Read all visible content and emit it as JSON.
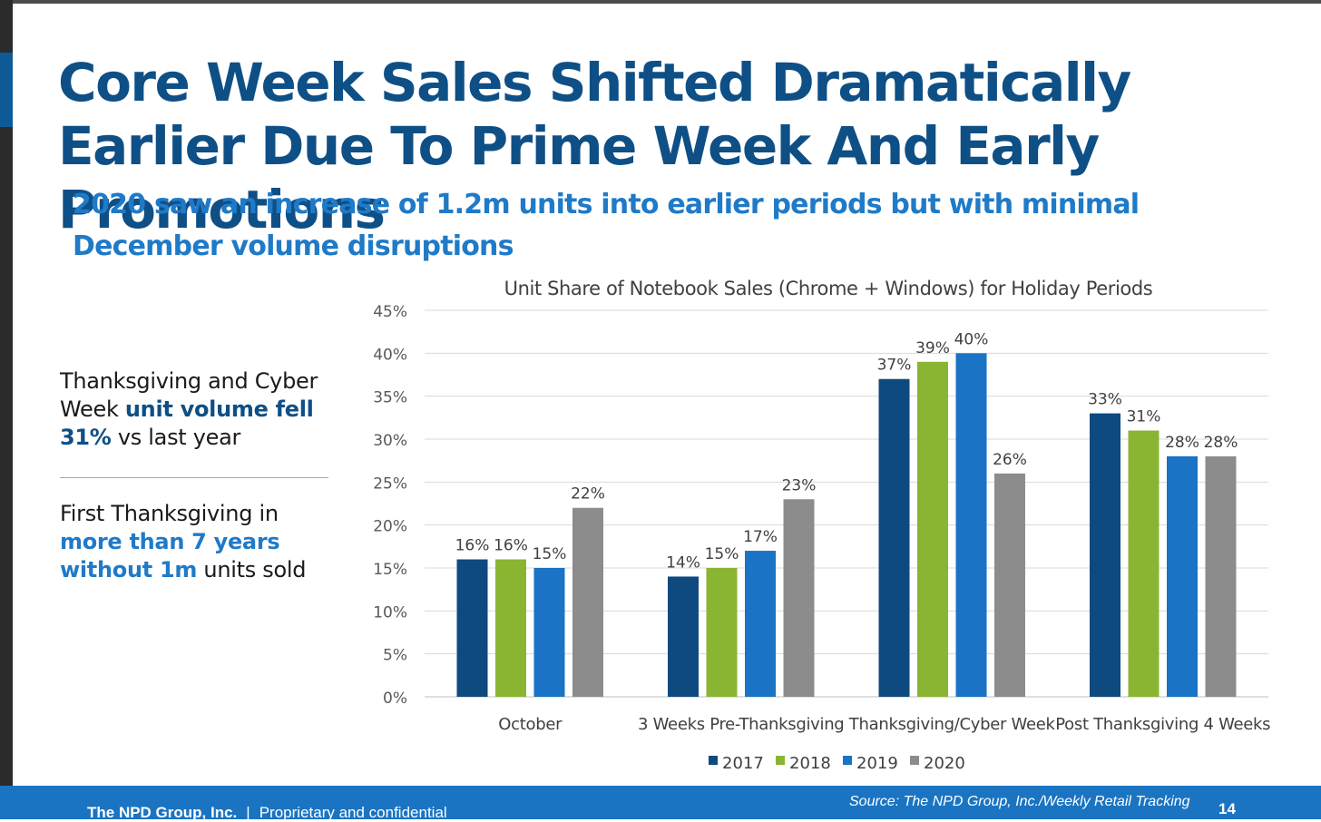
{
  "slide": {
    "title": "Core Week Sales Shifted Dramatically Earlier Due To Prime Week And Early Promotions",
    "subtitle": "2020 saw an increase of 1.2m units into earlier periods but with minimal December volume disruptions",
    "note1": {
      "t1": "Thanksgiving and Cyber Week ",
      "hl": "unit volume fell 31%",
      "t2": " vs last year"
    },
    "note2": {
      "t1": "First Thanksgiving in ",
      "hl": "more than 7 years without 1m",
      "t2": " units sold"
    },
    "footer": {
      "company": "The NPD Group, Inc.",
      "separator": "|",
      "confidential": "Proprietary and confidential",
      "source": "Source: The NPD Group, Inc./Weekly Retail Tracking",
      "page": "14"
    }
  },
  "chart_data": {
    "type": "bar",
    "title": "Unit Share of Notebook Sales (Chrome + Windows) for Holiday Periods",
    "categories": [
      "October",
      "3 Weeks Pre-Thanksgiving",
      "Thanksgiving/Cyber Week",
      "Post Thanksgiving 4 Weeks"
    ],
    "series": [
      {
        "name": "2017",
        "color": "#0e4a80",
        "values": [
          16,
          14,
          37,
          33
        ],
        "labels": [
          "16%",
          "14%",
          "37%",
          "33%"
        ]
      },
      {
        "name": "2018",
        "color": "#8ab532",
        "values": [
          16,
          15,
          39,
          31
        ],
        "labels": [
          "16%",
          "15%",
          "39%",
          "31%"
        ]
      },
      {
        "name": "2019",
        "color": "#1a73c4",
        "values": [
          15,
          17,
          40,
          28
        ],
        "labels": [
          "15%",
          "17%",
          "40%",
          "28%"
        ]
      },
      {
        "name": "2020",
        "color": "#8c8c8c",
        "values": [
          22,
          23,
          26,
          28
        ],
        "labels": [
          "22%",
          "23%",
          "26%",
          "28%"
        ]
      }
    ],
    "ylim": [
      0,
      45
    ],
    "yticks": [
      "0%",
      "5%",
      "10%",
      "15%",
      "20%",
      "25%",
      "30%",
      "35%",
      "40%",
      "45%"
    ],
    "grid": true,
    "legend": "bottom"
  }
}
